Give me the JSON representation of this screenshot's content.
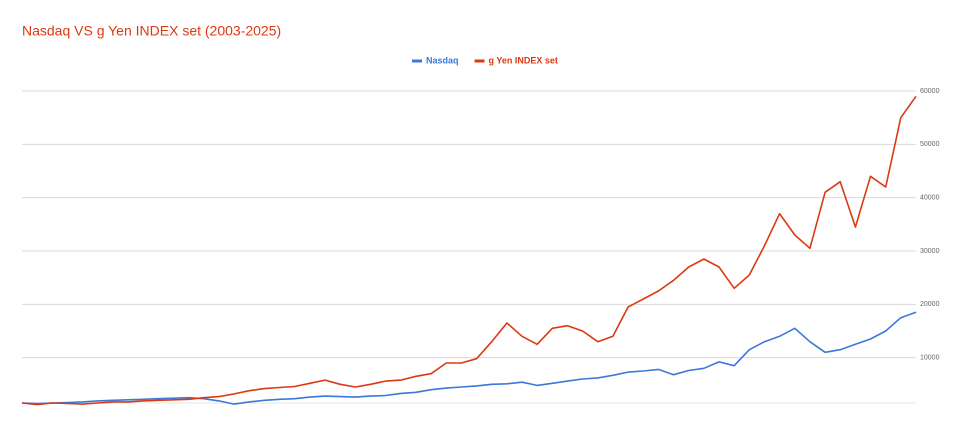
{
  "chart_data": {
    "type": "line",
    "title": "Nasdaq VS g Yen INDEX set (2003-2025)",
    "title_color": "#dc3912",
    "categories": [
      null,
      null,
      null,
      null,
      null,
      null,
      null,
      null,
      null,
      null,
      null,
      null,
      null,
      null,
      null,
      null,
      null,
      null,
      null,
      null,
      null,
      null,
      null,
      null,
      null,
      null,
      null,
      null,
      null,
      null,
      null,
      null,
      null,
      null,
      null,
      null,
      null,
      null,
      null,
      null,
      null,
      null,
      null,
      null,
      null,
      null,
      null,
      null,
      null,
      null,
      null,
      null,
      null,
      null,
      null,
      null,
      null,
      null,
      null,
      null
    ],
    "series": [
      {
        "name": "Nasdaq",
        "color": "#3c78d8",
        "values": [
          1500,
          1400,
          1500,
          1600,
          1700,
          1900,
          2000,
          2100,
          2200,
          2300,
          2400,
          2500,
          2300,
          1900,
          1300,
          1700,
          2000,
          2200,
          2300,
          2600,
          2800,
          2700,
          2600,
          2800,
          2900,
          3300,
          3500,
          4000,
          4300,
          4500,
          4700,
          5000,
          5100,
          5400,
          4800,
          5200,
          5600,
          6000,
          6200,
          6700,
          7300,
          7500,
          7800,
          6800,
          7600,
          8000,
          9200,
          8500,
          11500,
          13000,
          14000,
          15500,
          13000,
          11000,
          11500,
          12500,
          13500,
          15000,
          17500,
          18500
        ]
      },
      {
        "name": "g Yen INDEX set",
        "color": "#dc3912",
        "values": [
          1500,
          1200,
          1500,
          1400,
          1300,
          1500,
          1700,
          1700,
          1900,
          2000,
          2100,
          2200,
          2500,
          2700,
          3200,
          3800,
          4200,
          4400,
          4600,
          5200,
          5800,
          5000,
          4500,
          5000,
          5600,
          5800,
          6500,
          7000,
          9000,
          9000,
          9800,
          13000,
          16500,
          14000,
          12500,
          15500,
          16000,
          15000,
          13000,
          14000,
          19500,
          21000,
          22500,
          24500,
          27000,
          28500,
          27000,
          23000,
          25500,
          31000,
          37000,
          33000,
          30500,
          41000,
          43000,
          34500,
          44000,
          42000,
          55000,
          59000
        ]
      }
    ],
    "ylim": [
      0,
      60000
    ],
    "yticks": [
      10000,
      20000,
      30000,
      40000,
      50000,
      60000
    ],
    "grid": true,
    "legend": "top"
  }
}
